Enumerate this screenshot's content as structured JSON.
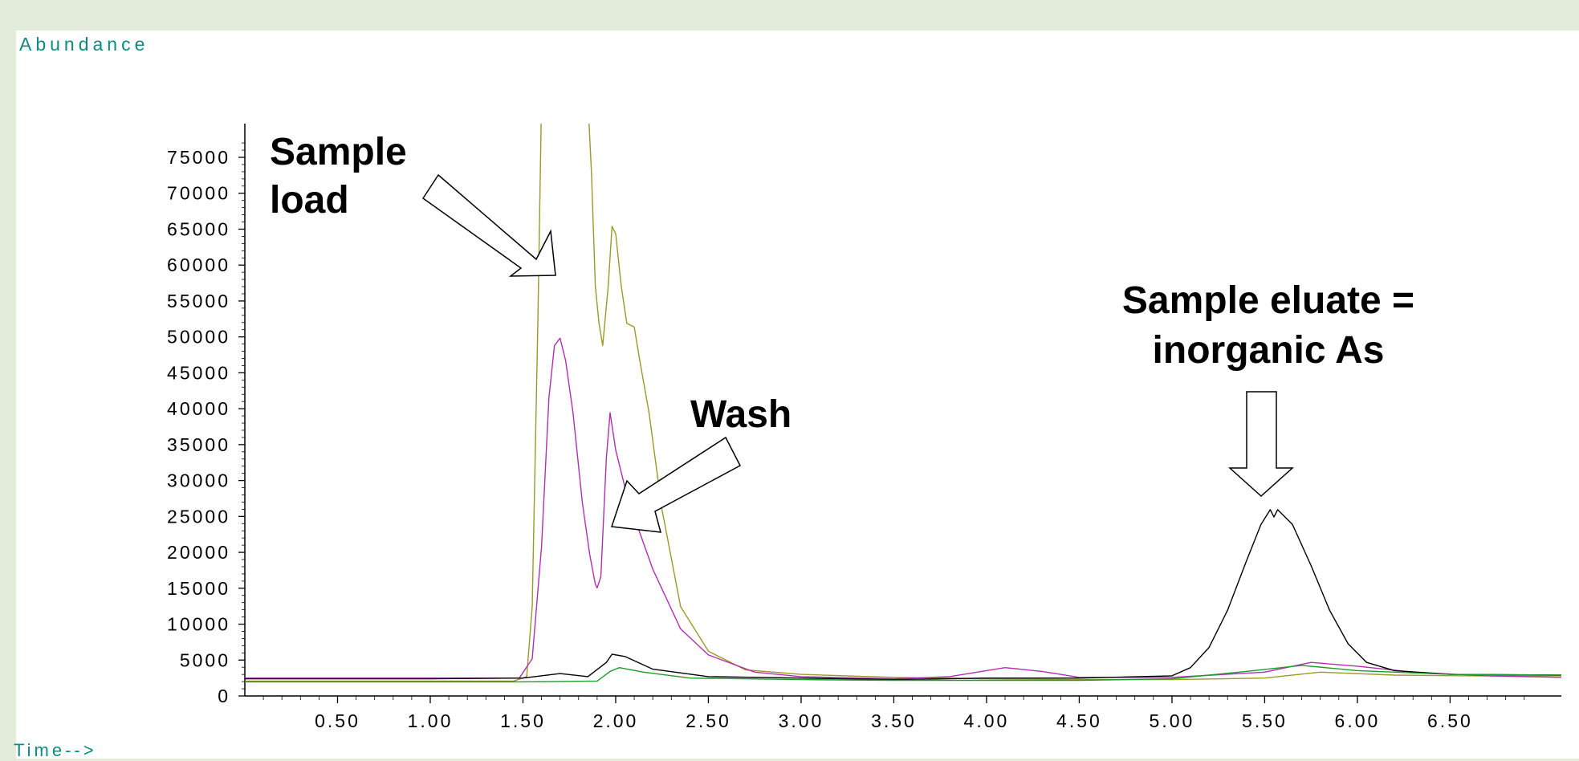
{
  "chart_data": {
    "type": "line",
    "ylabel": "Abundance",
    "xlabel": "Time-->",
    "xlim": [
      0.0,
      7.1
    ],
    "ylim": [
      0,
      77000
    ],
    "xticks": [
      "0.50",
      "1.00",
      "1.50",
      "2.00",
      "2.50",
      "3.00",
      "3.50",
      "4.00",
      "4.50",
      "5.00",
      "5.50",
      "6.00",
      "6.50"
    ],
    "yticks": [
      "0",
      "5000",
      "10000",
      "15000",
      "20000",
      "25000",
      "30000",
      "35000",
      "40000",
      "45000",
      "50000",
      "55000",
      "60000",
      "65000",
      "70000",
      "75000"
    ],
    "grid": false,
    "series": [
      {
        "color": "#9a9a28",
        "points": [
          [
            0.0,
            2000
          ],
          [
            0.5,
            2000
          ],
          [
            1.0,
            2000
          ],
          [
            1.45,
            2000
          ],
          [
            1.52,
            2600
          ],
          [
            1.55,
            12000
          ],
          [
            1.58,
            50000
          ],
          [
            1.6,
            80000
          ],
          [
            1.75,
            80000
          ],
          [
            1.85,
            80000
          ],
          [
            1.87,
            70000
          ],
          [
            1.89,
            55000
          ],
          [
            1.91,
            50000
          ],
          [
            1.93,
            47000
          ],
          [
            1.96,
            55000
          ],
          [
            1.98,
            63000
          ],
          [
            2.0,
            62000
          ],
          [
            2.03,
            55000
          ],
          [
            2.06,
            50000
          ],
          [
            2.1,
            49500
          ],
          [
            2.13,
            45000
          ],
          [
            2.18,
            38000
          ],
          [
            2.25,
            25000
          ],
          [
            2.35,
            12000
          ],
          [
            2.5,
            6000
          ],
          [
            2.7,
            3500
          ],
          [
            3.0,
            2900
          ],
          [
            3.5,
            2500
          ],
          [
            4.0,
            2300
          ],
          [
            4.5,
            2200
          ],
          [
            5.0,
            2200
          ],
          [
            5.5,
            2400
          ],
          [
            5.8,
            3200
          ],
          [
            6.2,
            2800
          ],
          [
            6.6,
            2700
          ],
          [
            7.1,
            2700
          ]
        ]
      },
      {
        "color": "#b030b0",
        "points": [
          [
            0.0,
            2400
          ],
          [
            0.5,
            2400
          ],
          [
            1.0,
            2400
          ],
          [
            1.48,
            2400
          ],
          [
            1.55,
            5000
          ],
          [
            1.6,
            20000
          ],
          [
            1.64,
            40000
          ],
          [
            1.67,
            47000
          ],
          [
            1.7,
            48000
          ],
          [
            1.73,
            45000
          ],
          [
            1.77,
            38000
          ],
          [
            1.82,
            26000
          ],
          [
            1.86,
            19000
          ],
          [
            1.89,
            15000
          ],
          [
            1.9,
            14500
          ],
          [
            1.92,
            16000
          ],
          [
            1.95,
            32000
          ],
          [
            1.97,
            38000
          ],
          [
            2.0,
            33000
          ],
          [
            2.05,
            28000
          ],
          [
            2.1,
            24000
          ],
          [
            2.2,
            17000
          ],
          [
            2.35,
            9000
          ],
          [
            2.5,
            5500
          ],
          [
            2.75,
            3200
          ],
          [
            3.0,
            2600
          ],
          [
            3.5,
            2300
          ],
          [
            3.8,
            2600
          ],
          [
            4.1,
            3800
          ],
          [
            4.3,
            3300
          ],
          [
            4.5,
            2500
          ],
          [
            5.0,
            2500
          ],
          [
            5.5,
            3200
          ],
          [
            5.75,
            4500
          ],
          [
            6.0,
            4000
          ],
          [
            6.3,
            3200
          ],
          [
            6.7,
            2700
          ],
          [
            7.1,
            2500
          ]
        ]
      },
      {
        "color": "#000000",
        "points": [
          [
            0.0,
            2300
          ],
          [
            0.5,
            2300
          ],
          [
            1.0,
            2300
          ],
          [
            1.5,
            2400
          ],
          [
            1.7,
            3000
          ],
          [
            1.85,
            2600
          ],
          [
            1.95,
            4500
          ],
          [
            1.98,
            5600
          ],
          [
            2.05,
            5300
          ],
          [
            2.2,
            3600
          ],
          [
            2.5,
            2600
          ],
          [
            3.0,
            2400
          ],
          [
            3.5,
            2200
          ],
          [
            4.0,
            2400
          ],
          [
            4.5,
            2400
          ],
          [
            5.0,
            2700
          ],
          [
            5.1,
            3800
          ],
          [
            5.2,
            6500
          ],
          [
            5.3,
            11500
          ],
          [
            5.4,
            18000
          ],
          [
            5.48,
            23000
          ],
          [
            5.53,
            25000
          ],
          [
            5.55,
            24000
          ],
          [
            5.57,
            25000
          ],
          [
            5.65,
            23000
          ],
          [
            5.75,
            17500
          ],
          [
            5.85,
            11500
          ],
          [
            5.95,
            7000
          ],
          [
            6.05,
            4500
          ],
          [
            6.2,
            3400
          ],
          [
            6.5,
            2900
          ],
          [
            7.1,
            2800
          ]
        ]
      },
      {
        "color": "#1e9a2e",
        "points": [
          [
            0.0,
            1900
          ],
          [
            0.5,
            1900
          ],
          [
            1.0,
            1900
          ],
          [
            1.5,
            1900
          ],
          [
            1.9,
            2000
          ],
          [
            1.97,
            3300
          ],
          [
            2.02,
            3800
          ],
          [
            2.15,
            3200
          ],
          [
            2.4,
            2400
          ],
          [
            3.0,
            2200
          ],
          [
            3.5,
            2100
          ],
          [
            4.0,
            2100
          ],
          [
            4.5,
            2100
          ],
          [
            5.0,
            2300
          ],
          [
            5.4,
            3300
          ],
          [
            5.7,
            4100
          ],
          [
            6.0,
            3400
          ],
          [
            6.5,
            2900
          ],
          [
            7.1,
            2800
          ]
        ]
      }
    ],
    "annotations": [
      {
        "text_lines": [
          "Sample",
          "load"
        ]
      },
      {
        "text_lines": [
          "Wash"
        ]
      },
      {
        "text_lines": [
          "Sample eluate  =",
          "inorganic As"
        ]
      }
    ]
  }
}
